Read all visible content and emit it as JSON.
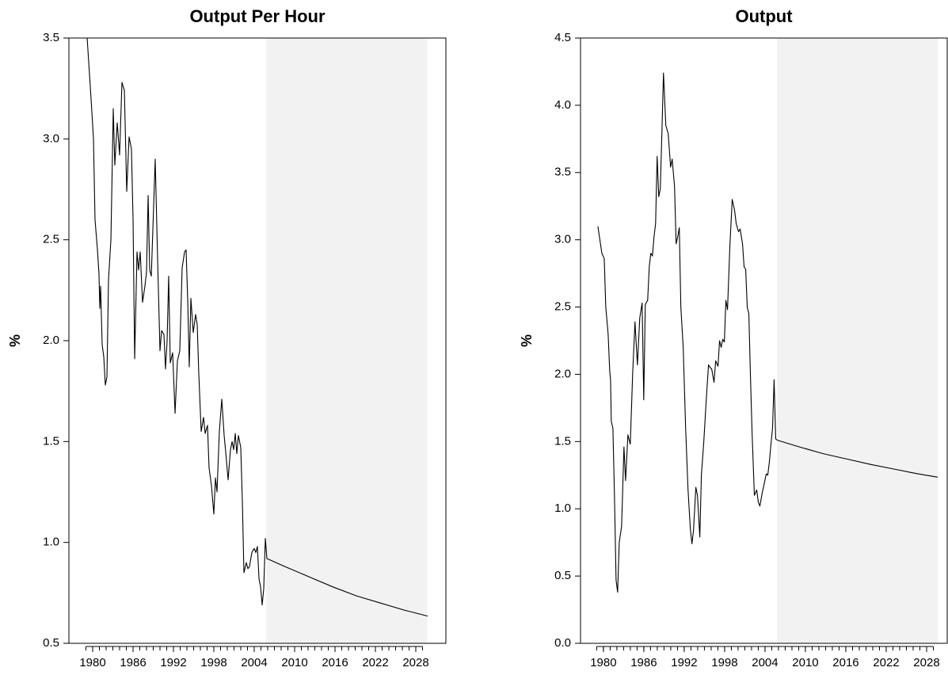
{
  "chart_data": [
    {
      "type": "line",
      "title": "Output Per Hour",
      "ylabel": "%",
      "color": "#000000",
      "shade_color": "#f2f2f2",
      "shade": [
        2005.8,
        2029.7
      ],
      "xlim": [
        1976.47,
        2032.47
      ],
      "ylim": [
        0.5,
        3.5
      ],
      "xticks": [
        1980,
        1986,
        1992,
        1998,
        2004,
        2010,
        2016,
        2022,
        2028
      ],
      "xminorticks": [
        1979,
        1980,
        1981,
        1982,
        1983,
        1984,
        1985,
        1986,
        1987,
        1988,
        1989,
        1990,
        1991,
        1992,
        1993,
        1994,
        1995,
        1996,
        1997,
        1998,
        1999,
        2000,
        2001,
        2002,
        2003,
        2004,
        2005,
        2006,
        2007,
        2008,
        2009,
        2010,
        2011,
        2012,
        2013,
        2014,
        2015,
        2016,
        2017,
        2018,
        2019,
        2020,
        2021,
        2022,
        2023,
        2024,
        2025,
        2026,
        2027,
        2028,
        2029
      ],
      "yticks": [
        0.5,
        {
          "value": 1,
          "label": "1.0"
        },
        1.5,
        {
          "value": 2,
          "label": "2.0"
        },
        2.5,
        {
          "value": 3,
          "label": "3.0"
        },
        3.5
      ],
      "x": [
        1979.18,
        1979.76,
        1980.12,
        1980.35,
        1980.71,
        1980.94,
        1981.06,
        1981.18,
        1981.41,
        1981.65,
        1981.88,
        1982.12,
        1982.35,
        1982.71,
        1983.06,
        1983.29,
        1983.65,
        1984.0,
        1984.35,
        1984.71,
        1985.06,
        1985.41,
        1985.76,
        1986.0,
        1986.24,
        1986.59,
        1986.82,
        1987.06,
        1987.41,
        1987.76,
        1988.0,
        1988.24,
        1988.47,
        1988.71,
        1988.94,
        1989.29,
        1989.65,
        1990.0,
        1990.24,
        1990.59,
        1990.82,
        1991.06,
        1991.29,
        1991.53,
        1991.88,
        1992.24,
        1992.59,
        1992.94,
        1993.29,
        1993.65,
        1993.88,
        1994.12,
        1994.35,
        1994.59,
        1994.94,
        1995.29,
        1995.53,
        1995.76,
        1996.12,
        1996.47,
        1996.71,
        1997.06,
        1997.29,
        1997.65,
        1998.0,
        1998.24,
        1998.47,
        1998.82,
        1999.18,
        1999.53,
        1999.76,
        2000.12,
        2000.47,
        2000.71,
        2000.94,
        2001.18,
        2001.41,
        2001.65,
        2002.0,
        2002.24,
        2002.47,
        2002.82,
        2003.06,
        2003.29,
        2003.65,
        2004.0,
        2004.24,
        2004.47,
        2004.71,
        2004.94,
        2005.18,
        2005.41,
        2005.65,
        2005.88,
        2008.59,
        2012.12,
        2015.65,
        2019.18,
        2022.71,
        2026.24,
        2029.76
      ],
      "values": [
        3.5,
        3.2,
        3.0,
        2.6,
        2.45,
        2.33,
        2.16,
        2.27,
        1.98,
        1.92,
        1.78,
        1.82,
        2.3,
        2.5,
        3.15,
        2.87,
        3.08,
        2.92,
        3.28,
        3.24,
        2.74,
        3.01,
        2.95,
        2.6,
        1.91,
        2.44,
        2.35,
        2.44,
        2.19,
        2.27,
        2.34,
        2.72,
        2.35,
        2.32,
        2.55,
        2.9,
        2.4,
        1.95,
        2.05,
        2.03,
        1.86,
        2.0,
        2.32,
        1.89,
        1.94,
        1.64,
        1.9,
        1.95,
        2.36,
        2.44,
        2.45,
        2.2,
        1.87,
        2.21,
        2.04,
        2.13,
        2.08,
        1.84,
        1.55,
        1.62,
        1.54,
        1.58,
        1.37,
        1.28,
        1.14,
        1.32,
        1.25,
        1.55,
        1.71,
        1.53,
        1.45,
        1.31,
        1.46,
        1.5,
        1.46,
        1.54,
        1.44,
        1.53,
        1.47,
        1.2,
        0.85,
        0.9,
        0.87,
        0.88,
        0.95,
        0.97,
        0.95,
        0.98,
        0.82,
        0.78,
        0.69,
        0.77,
        1.02,
        0.92,
        0.88,
        0.83,
        0.78,
        0.735,
        0.7,
        0.665,
        0.635
      ]
    },
    {
      "type": "line",
      "title": "Output",
      "ylabel": "%",
      "color": "#000000",
      "shade_color": "#f2f2f2",
      "shade": [
        2005.8,
        2029.7
      ],
      "xlim": [
        1976.6,
        2031.06
      ],
      "ylim": [
        0,
        4.5
      ],
      "xticks": [
        1980,
        1986,
        1992,
        1998,
        2004,
        2010,
        2016,
        2022,
        2028
      ],
      "xminorticks": [
        1979,
        1980,
        1981,
        1982,
        1983,
        1984,
        1985,
        1986,
        1987,
        1988,
        1989,
        1990,
        1991,
        1992,
        1993,
        1994,
        1995,
        1996,
        1997,
        1998,
        1999,
        2000,
        2001,
        2002,
        2003,
        2004,
        2005,
        2006,
        2007,
        2008,
        2009,
        2010,
        2011,
        2012,
        2013,
        2014,
        2015,
        2016,
        2017,
        2018,
        2019,
        2020,
        2021,
        2022,
        2023,
        2024,
        2025,
        2026,
        2027,
        2028,
        2029
      ],
      "yticks": [
        {
          "value": 0,
          "label": "0.0"
        },
        0.5,
        {
          "value": 1,
          "label": "1.0"
        },
        1.5,
        {
          "value": 2,
          "label": "2.0"
        },
        2.5,
        {
          "value": 3,
          "label": "3.0"
        },
        3.5,
        {
          "value": 4,
          "label": "4.0"
        },
        4.5
      ],
      "x": [
        1979.18,
        1979.77,
        1980.12,
        1980.35,
        1980.7,
        1980.94,
        1981.06,
        1981.17,
        1981.41,
        1981.64,
        1981.88,
        1982.11,
        1982.35,
        1982.7,
        1983.05,
        1983.29,
        1983.64,
        1983.99,
        1984.34,
        1984.69,
        1985.05,
        1985.4,
        1985.75,
        1985.99,
        1986.22,
        1986.57,
        1986.81,
        1987.04,
        1987.28,
        1987.51,
        1987.75,
        1987.98,
        1988.22,
        1988.45,
        1988.69,
        1988.92,
        1989.27,
        1989.62,
        1989.98,
        1990.21,
        1990.56,
        1990.8,
        1991.03,
        1991.27,
        1991.5,
        1991.85,
        1992.21,
        1992.56,
        1992.91,
        1993.15,
        1993.38,
        1993.73,
        1993.97,
        1994.32,
        1994.55,
        1994.91,
        1995.26,
        1995.61,
        1995.85,
        1996.08,
        1996.43,
        1996.67,
        1997.02,
        1997.25,
        1997.49,
        1997.72,
        1997.96,
        1998.19,
        1998.43,
        1998.78,
        1999.13,
        1999.48,
        1999.72,
        2000.07,
        2000.31,
        2000.66,
        2000.89,
        2001.13,
        2001.36,
        2001.6,
        2001.83,
        2002.07,
        2002.42,
        2002.77,
        2003.0,
        2003.24,
        2003.59,
        2003.94,
        2004.18,
        2004.41,
        2004.65,
        2004.88,
        2005.12,
        2005.35,
        2005.59,
        2005.82,
        2009.11,
        2012.63,
        2016.15,
        2019.67,
        2023.19,
        2026.71,
        2029.65
      ],
      "values": [
        3.1,
        2.9,
        2.86,
        2.5,
        2.3,
        2.02,
        1.96,
        1.65,
        1.6,
        1.1,
        0.47,
        0.38,
        0.75,
        0.87,
        1.46,
        1.21,
        1.55,
        1.48,
        2.0,
        2.39,
        2.07,
        2.42,
        2.53,
        1.81,
        2.52,
        2.55,
        2.8,
        2.9,
        2.88,
        3.02,
        3.12,
        3.62,
        3.32,
        3.38,
        3.8,
        4.24,
        3.85,
        3.79,
        3.54,
        3.6,
        3.4,
        2.97,
        3.02,
        3.09,
        2.5,
        2.2,
        1.6,
        1.15,
        0.85,
        0.74,
        0.84,
        1.16,
        1.1,
        0.79,
        1.25,
        1.5,
        1.8,
        2.07,
        2.05,
        2.04,
        1.94,
        2.1,
        2.06,
        2.25,
        2.2,
        2.26,
        2.24,
        2.55,
        2.48,
        2.95,
        3.3,
        3.22,
        3.12,
        3.06,
        3.08,
        2.97,
        2.8,
        2.78,
        2.5,
        2.45,
        2.0,
        1.58,
        1.1,
        1.14,
        1.05,
        1.02,
        1.12,
        1.2,
        1.26,
        1.25,
        1.35,
        1.48,
        1.6,
        1.96,
        1.52,
        1.51,
        1.46,
        1.41,
        1.37,
        1.33,
        1.295,
        1.26,
        1.235
      ]
    }
  ]
}
